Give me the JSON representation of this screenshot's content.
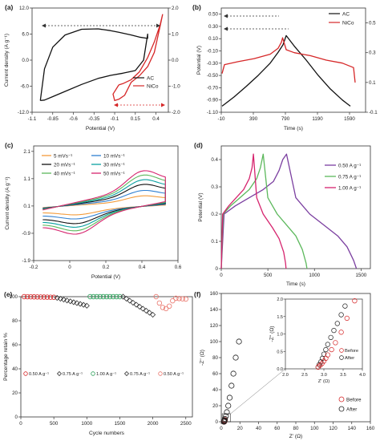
{
  "panels": {
    "a": {
      "label": "(a)",
      "chart_data": {
        "type": "line",
        "xlabel": "Potential (V)",
        "ylabel": "Current density (A g⁻¹)",
        "xlim": [
          -1.1,
          0.55
        ],
        "ylim_left": [
          -12.0,
          12.0
        ],
        "ylim_right": [
          -2.0,
          2.0
        ],
        "x_ticks": [
          "-1.1",
          "-0.85",
          "-0.6",
          "-0.35",
          "-0.1",
          "0.15",
          "0.4"
        ],
        "y_ticks_left": [
          "-12.0",
          "-6.0",
          "0.0",
          "6.0",
          "12.0"
        ],
        "y_ticks_right": [
          "-2.0",
          "-1.0",
          "0.0",
          "1.0",
          "2.0"
        ],
        "legend": [
          "AC",
          "NiCo"
        ],
        "legend_position": "bottom-right",
        "series": [
          {
            "name": "AC",
            "axis": "left",
            "color": "#111111",
            "x": [
              -1.0,
              -0.95,
              -0.85,
              -0.7,
              -0.5,
              -0.3,
              -0.15,
              -0.05,
              0.1,
              0.2,
              0.3,
              0.3,
              0.25,
              0.15,
              0.0,
              -0.15,
              -0.3,
              -0.5,
              -0.7,
              -0.85,
              -0.95,
              -1.0
            ],
            "y": [
              -9.3,
              -2.0,
              3.0,
              5.8,
              7.1,
              7.2,
              6.8,
              6.4,
              5.8,
              5.3,
              5.0,
              6.0,
              0.0,
              -2.4,
              -3.0,
              -3.5,
              -4.2,
              -5.6,
              -7.2,
              -8.4,
              -9.2,
              -9.3
            ]
          },
          {
            "name": "NiCo",
            "axis": "right",
            "color": "#d62728",
            "x": [
              -0.05,
              0.0,
              0.1,
              0.2,
              0.3,
              0.38,
              0.45,
              0.48,
              0.45,
              0.38,
              0.3,
              0.2,
              0.1,
              0.02,
              -0.05,
              -0.1,
              -0.12,
              -0.05
            ],
            "y": [
              -0.95,
              -0.9,
              -0.75,
              -0.45,
              0.1,
              0.7,
              1.35,
              1.75,
              1.3,
              0.3,
              -0.25,
              -0.6,
              -0.85,
              -1.35,
              -1.5,
              -1.55,
              -1.3,
              -0.95
            ]
          }
        ]
      }
    },
    "b": {
      "label": "(b)",
      "chart_data": {
        "type": "line",
        "xlabel": "Time (s)",
        "ylabel": "Potential (V)",
        "xlim": [
          -10,
          1790
        ],
        "ylim_left": [
          -1.1,
          0.6
        ],
        "ylim_right": [
          -0.1,
          0.6
        ],
        "x_ticks": [
          "-10",
          "390",
          "790",
          "1190",
          "1590"
        ],
        "y_ticks_left": [
          "-1.10",
          "-0.90",
          "-0.70",
          "-0.50",
          "-0.30",
          "-0.10",
          "0.10",
          "0.30",
          "0.50"
        ],
        "y_ticks_right": [
          "-0.1",
          "0.1",
          "0.3",
          "0.5"
        ],
        "legend": [
          "AC",
          "NiCo"
        ],
        "legend_position": "top-right",
        "series": [
          {
            "name": "AC",
            "axis": "left",
            "color": "#111111",
            "x": [
              0,
              150,
              300,
              450,
              600,
              700,
              760,
              800,
              900,
              1050,
              1200,
              1350,
              1500,
              1600
            ],
            "y": [
              -1.0,
              -0.85,
              -0.68,
              -0.5,
              -0.3,
              -0.12,
              0.0,
              0.15,
              -0.02,
              -0.25,
              -0.5,
              -0.72,
              -0.9,
              -1.0
            ]
          },
          {
            "name": "NiCo",
            "axis": "right",
            "color": "#d62728",
            "x": [
              0,
              30,
              200,
              400,
              600,
              700,
              740,
              755,
              800,
              900,
              1100,
              1300,
              1500,
              1640,
              1660
            ],
            "y": [
              0.16,
              0.22,
              0.24,
              0.26,
              0.29,
              0.33,
              0.37,
              0.4,
              0.32,
              0.3,
              0.28,
              0.25,
              0.23,
              0.2,
              0.1
            ]
          }
        ]
      }
    },
    "c": {
      "label": "(c)",
      "chart_data": {
        "type": "line",
        "xlabel": "Potential (V)",
        "ylabel": "Current density (A g⁻¹)",
        "xlim": [
          -0.2,
          0.6
        ],
        "ylim": [
          -1.9,
          2.3
        ],
        "x_ticks": [
          "-0.2",
          "0",
          "0.2",
          "0.4",
          "0.6"
        ],
        "y_ticks": [
          "-1.9",
          "-0.9",
          "0.1",
          "1.1",
          "2.1"
        ],
        "legend_position": "top-left",
        "series": [
          {
            "name": "5 mVs⁻¹",
            "color": "#f39c3c",
            "scale": 0.3
          },
          {
            "name": "10 mVs⁻¹",
            "color": "#2f7fd1",
            "scale": 0.45
          },
          {
            "name": "20 mVs⁻¹",
            "color": "#111111",
            "scale": 0.62
          },
          {
            "name": "30 mVs⁻¹",
            "color": "#0aa0a0",
            "scale": 0.75
          },
          {
            "name": "40 mVs⁻¹",
            "color": "#5cb85c",
            "scale": 0.88
          },
          {
            "name": "50 mVs⁻¹",
            "color": "#d6246e",
            "scale": 1.0
          }
        ]
      }
    },
    "d": {
      "label": "(d)",
      "chart_data": {
        "type": "line",
        "xlabel": "Time (s)",
        "ylabel": "Potential (V)",
        "xlim": [
          0,
          1600
        ],
        "ylim": [
          0,
          0.45
        ],
        "x_ticks": [
          "0",
          "500",
          "1000",
          "1500"
        ],
        "y_ticks": [
          "0",
          "0.1",
          "0.2",
          "0.3",
          "0.4"
        ],
        "legend_position": "top-right",
        "series": [
          {
            "name": "0.50 A g⁻¹",
            "color": "#7b3fa0",
            "x": [
              0,
              30,
              150,
              300,
              450,
              560,
              620,
              660,
              700,
              800,
              950,
              1100,
              1250,
              1350,
              1420,
              1450
            ],
            "y": [
              0.0,
              0.2,
              0.23,
              0.26,
              0.29,
              0.32,
              0.36,
              0.4,
              0.42,
              0.26,
              0.2,
              0.16,
              0.12,
              0.08,
              0.03,
              0.0
            ]
          },
          {
            "name": "0.75 A g⁻¹",
            "color": "#5cb85c",
            "x": [
              0,
              20,
              100,
              200,
              300,
              380,
              420,
              450,
              500,
              600,
              700,
              800,
              870,
              910,
              920
            ],
            "y": [
              0.0,
              0.2,
              0.23,
              0.26,
              0.29,
              0.33,
              0.37,
              0.42,
              0.26,
              0.2,
              0.16,
              0.12,
              0.07,
              0.02,
              0.0
            ]
          },
          {
            "name": "1.00 A g⁻¹",
            "color": "#d6246e",
            "x": [
              0,
              15,
              80,
              160,
              240,
              300,
              330,
              345,
              380,
              450,
              550,
              620,
              670,
              690,
              695
            ],
            "y": [
              0.0,
              0.2,
              0.23,
              0.26,
              0.29,
              0.33,
              0.37,
              0.42,
              0.26,
              0.2,
              0.15,
              0.11,
              0.06,
              0.02,
              0.0
            ]
          }
        ]
      }
    },
    "e": {
      "label": "(e)",
      "chart_data": {
        "type": "scatter",
        "xlabel": "Cycle numbers",
        "ylabel": "Percentage retain %",
        "xlim": [
          0,
          2600
        ],
        "ylim": [
          0,
          100
        ],
        "x_ticks": [
          "0",
          "500",
          "1000",
          "1500",
          "2000",
          "2500"
        ],
        "y_ticks": [
          "0",
          "20",
          "40",
          "60",
          "80",
          "100"
        ],
        "legend_position": "middle",
        "segments": [
          {
            "name": "0.50 A g⁻¹",
            "color": "#d62728",
            "x_start": 50,
            "x_end": 500,
            "y_start": 100,
            "y_end": 99.5
          },
          {
            "name": "0.75 A g⁻¹",
            "color": "#333333",
            "x_start": 550,
            "x_end": 1000,
            "y_start": 99,
            "y_end": 92.5
          },
          {
            "name": "1.00 A g⁻¹",
            "color": "#2ca05a",
            "x_start": 1050,
            "x_end": 1500,
            "y_start": 100,
            "y_end": 100
          },
          {
            "name": "0.75 A g⁻¹",
            "color": "#333333",
            "x_start": 1550,
            "x_end": 2000,
            "y_start": 100,
            "y_end": 85
          },
          {
            "name": "0.50 A g⁻¹",
            "color": "#e9746a",
            "x_start": 2050,
            "x_end": 2500,
            "y_start": 100,
            "y_end": 96,
            "dip": 90
          }
        ]
      }
    },
    "f": {
      "label": "(f)",
      "chart_data": {
        "type": "scatter",
        "xlabel": "Z' (Ω)",
        "ylabel": "-Z'' (Ω)",
        "xlim": [
          0,
          160
        ],
        "ylim": [
          0,
          160
        ],
        "x_ticks": [
          "0",
          "20",
          "40",
          "60",
          "80",
          "100",
          "120",
          "140",
          "160"
        ],
        "y_ticks": [
          "0",
          "20",
          "40",
          "60",
          "80",
          "100",
          "120",
          "140",
          "160"
        ],
        "legend_position": "bottom-right",
        "series": [
          {
            "name": "Before",
            "color": "#d62728",
            "x": [
              2.9,
              3.0,
              3.1,
              3.2,
              3.3,
              3.4,
              3.5,
              3.6,
              3.8
            ],
            "y": [
              0.1,
              0.15,
              0.25,
              0.35,
              0.5,
              0.7,
              1.0,
              1.5,
              2.2
            ]
          },
          {
            "name": "After",
            "color": "#222222",
            "x": [
              2.9,
              3.0,
              3.2,
              3.5,
              4.0,
              5.0,
              6.0,
              7.5,
              9.0,
              11,
              13,
              15.5,
              19
            ],
            "y": [
              0.1,
              0.3,
              0.8,
              1.8,
              3.5,
              7.0,
              12,
              20,
              30,
              45,
              60,
              80,
              100
            ]
          }
        ],
        "inset": {
          "xlim": [
            2.0,
            4.0
          ],
          "ylim": [
            0,
            2.0
          ],
          "x_ticks": [
            "2.0",
            "2.5",
            "3.0",
            "3.5",
            "4.0"
          ],
          "y_ticks": [
            "0.0",
            "0.5",
            "1.0",
            "1.5",
            "2.0"
          ],
          "xlabel": "Z' (Ω)",
          "ylabel": "-Z'' (Ω)",
          "before": {
            "x": [
              2.85,
              2.9,
              2.95,
              3.0,
              3.05,
              3.1,
              3.2,
              3.3,
              3.45,
              3.6,
              3.8
            ],
            "y": [
              0.05,
              0.1,
              0.15,
              0.22,
              0.3,
              0.4,
              0.55,
              0.75,
              1.05,
              1.45,
              1.95
            ]
          },
          "after": {
            "x": [
              2.85,
              2.88,
              2.92,
              2.96,
              3.0,
              3.05,
              3.1,
              3.18,
              3.26,
              3.35,
              3.45,
              3.55
            ],
            "y": [
              0.05,
              0.12,
              0.2,
              0.3,
              0.42,
              0.55,
              0.7,
              0.9,
              1.1,
              1.3,
              1.55,
              1.8
            ]
          }
        }
      }
    }
  }
}
